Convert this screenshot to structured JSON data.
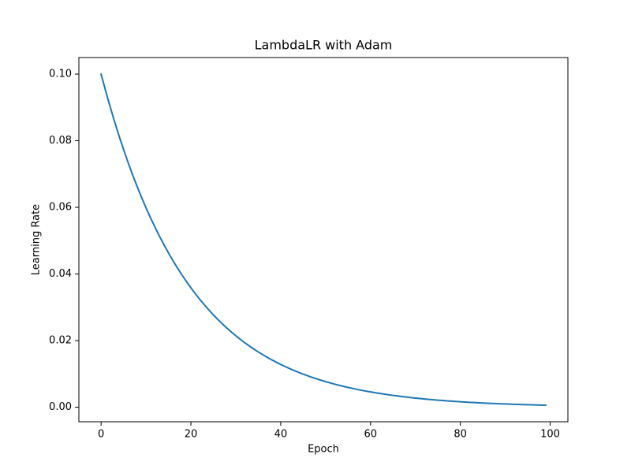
{
  "chart_data": {
    "type": "line",
    "title": "LambdaLR with Adam",
    "xlabel": "Epoch",
    "ylabel": "Learning Rate",
    "x": [
      0,
      1,
      2,
      3,
      4,
      5,
      6,
      7,
      8,
      9,
      10,
      11,
      12,
      13,
      14,
      15,
      16,
      17,
      18,
      19,
      20,
      21,
      22,
      23,
      24,
      25,
      26,
      27,
      28,
      29,
      30,
      31,
      32,
      33,
      34,
      35,
      36,
      37,
      38,
      39,
      40,
      41,
      42,
      43,
      44,
      45,
      46,
      47,
      48,
      49,
      50,
      51,
      52,
      53,
      54,
      55,
      56,
      57,
      58,
      59,
      60,
      61,
      62,
      63,
      64,
      65,
      66,
      67,
      68,
      69,
      70,
      71,
      72,
      73,
      74,
      75,
      76,
      77,
      78,
      79,
      80,
      81,
      82,
      83,
      84,
      85,
      86,
      87,
      88,
      89,
      90,
      91,
      92,
      93,
      94,
      95,
      96,
      97,
      98,
      99
    ],
    "values": [
      0.1,
      0.095,
      0.09025,
      0.08574,
      0.08145,
      0.07738,
      0.07351,
      0.06983,
      0.06634,
      0.06302,
      0.05987,
      0.05688,
      0.05404,
      0.05133,
      0.04877,
      0.04633,
      0.04401,
      0.04181,
      0.03972,
      0.03774,
      0.03585,
      0.03406,
      0.03235,
      0.03074,
      0.0292,
      0.02774,
      0.02635,
      0.02503,
      0.02378,
      0.02259,
      0.02146,
      0.02039,
      0.01937,
      0.0184,
      0.01748,
      0.01661,
      0.01578,
      0.01499,
      0.01424,
      0.01353,
      0.01285,
      0.01221,
      0.0116,
      0.01102,
      0.01047,
      0.00994,
      0.00945,
      0.00897,
      0.00853,
      0.0081,
      0.00769,
      0.00731,
      0.00694,
      0.0066,
      0.00627,
      0.00595,
      0.00566,
      0.00537,
      0.0051,
      0.00485,
      0.00461,
      0.00438,
      0.00416,
      0.00395,
      0.00375,
      0.00356,
      0.00339,
      0.00322,
      0.00306,
      0.0029,
      0.00276,
      0.00262,
      0.00249,
      0.00237,
      0.00225,
      0.00213,
      0.00203,
      0.00193,
      0.00183,
      0.00174,
      0.00165,
      0.00157,
      0.00149,
      0.00142,
      0.00135,
      0.00128,
      0.00121,
      0.00115,
      0.0011,
      0.00104,
      0.00099,
      0.00094,
      0.00089,
      0.00085,
      0.00081,
      0.00077,
      0.00073,
      0.00069,
      0.00066,
      0.00062
    ],
    "color": "#1f77b4",
    "xlim": [
      -4.95,
      103.95
    ],
    "xticks": [
      0,
      20,
      40,
      60,
      80,
      100
    ],
    "ylim": [
      -0.00435,
      0.10497
    ],
    "yticks": [
      {
        "value": 0,
        "label": "0.00"
      },
      {
        "value": 0.02,
        "label": "0.02"
      },
      {
        "value": 0.04,
        "label": "0.04"
      },
      {
        "value": 0.06,
        "label": "0.06"
      },
      {
        "value": 0.08,
        "label": "0.08"
      },
      {
        "value": 0.1,
        "label": "0.10"
      }
    ],
    "grid": false
  }
}
